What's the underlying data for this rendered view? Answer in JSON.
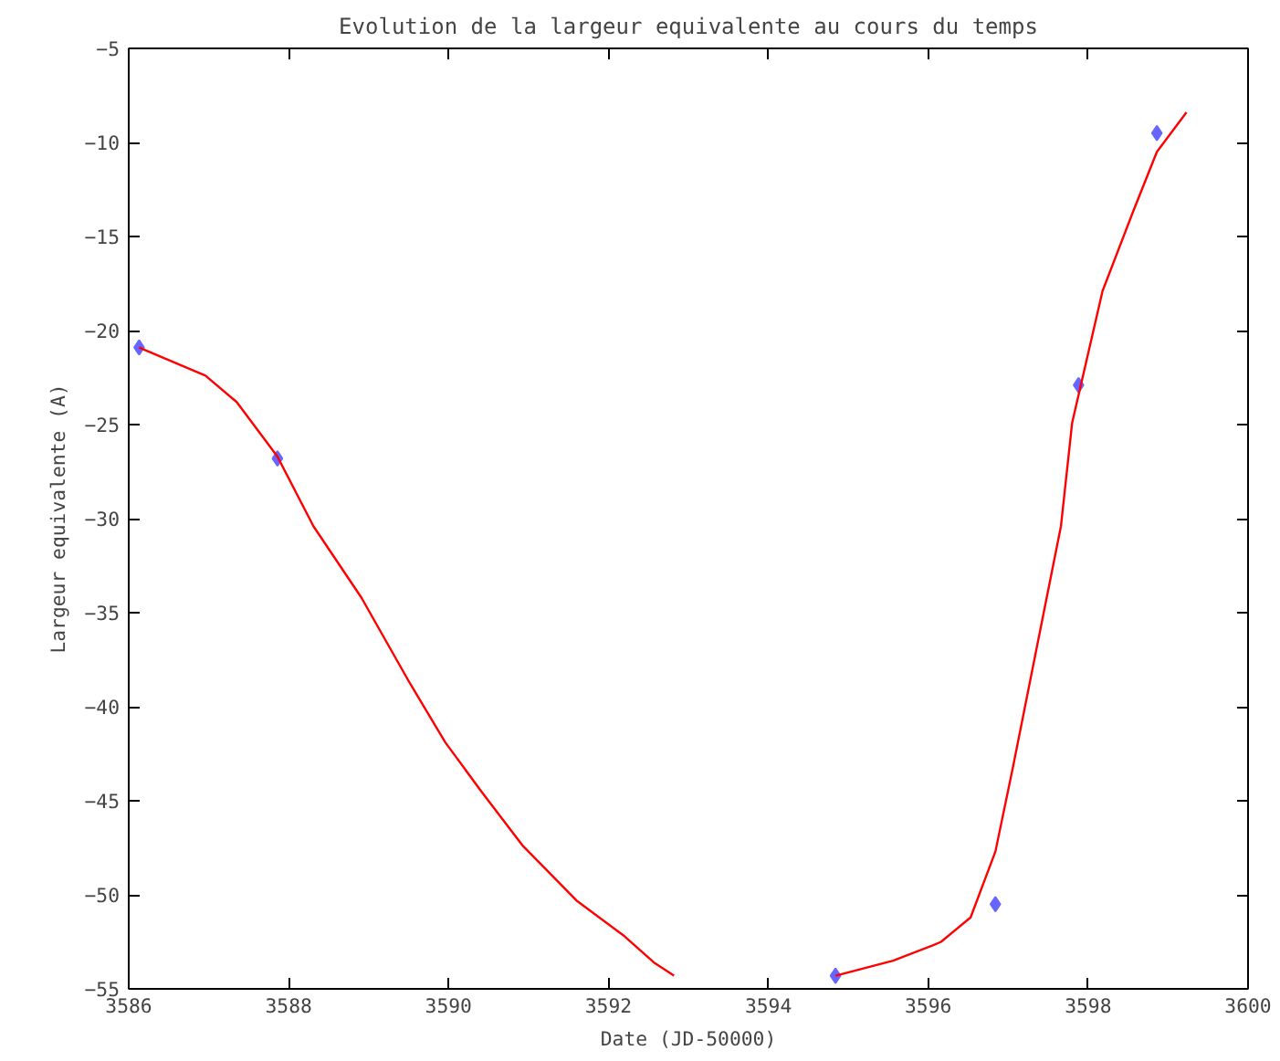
{
  "chart_data": {
    "type": "scatter",
    "title": "Evolution de la largeur equivalente au cours du temps",
    "xlabel": "Date (JD-50000)",
    "ylabel": "Largeur equivalente (A)",
    "xlim": [
      3586,
      3600
    ],
    "xticks": [
      3586,
      3588,
      3590,
      3592,
      3594,
      3596,
      3598,
      3600
    ],
    "ylim": [
      -55,
      -5
    ],
    "yticks": [
      -55,
      -50,
      -45,
      -40,
      -35,
      -30,
      -25,
      -20,
      -15,
      -10,
      -5
    ],
    "grid": false,
    "marker": "diamond",
    "series": [
      {
        "color": "#6666ff",
        "x": [
          3586.13,
          3587.86,
          3594.84,
          3596.84,
          3597.88,
          3598.86
        ],
        "values": [
          -20.9,
          -26.8,
          -54.3,
          -50.5,
          -22.9,
          -9.5
        ]
      },
      {
        "type": "line",
        "color": "#ff0000",
        "marker": "none",
        "line_style": "solid",
        "x": [
          3586.13,
          3586.96,
          3587.35,
          3587.86,
          3588.31,
          3588.91,
          3589.51,
          3589.96,
          3590.41,
          3590.93,
          3591.6,
          3592.2,
          3592.57,
          3592.82
        ],
        "values": [
          -20.9,
          -22.4,
          -23.8,
          -26.7,
          -30.4,
          -34.2,
          -38.7,
          -41.9,
          -44.5,
          -47.4,
          -50.3,
          -52.2,
          -53.6,
          -54.3
        ]
      },
      {
        "type": "line",
        "color": "#ff0000",
        "marker": "none",
        "line_style": "solid",
        "x": [
          3594.84,
          3595.56,
          3596.05,
          3596.16,
          3596.53,
          3596.84,
          3597.06,
          3597.36,
          3597.66,
          3597.8,
          3598.18,
          3598.56,
          3598.86,
          3599.23
        ],
        "values": [
          -54.3,
          -53.5,
          -52.7,
          -52.5,
          -51.2,
          -47.7,
          -43.2,
          -36.8,
          -30.4,
          -24.9,
          -17.9,
          -13.7,
          -10.5,
          -8.4
        ]
      }
    ]
  }
}
